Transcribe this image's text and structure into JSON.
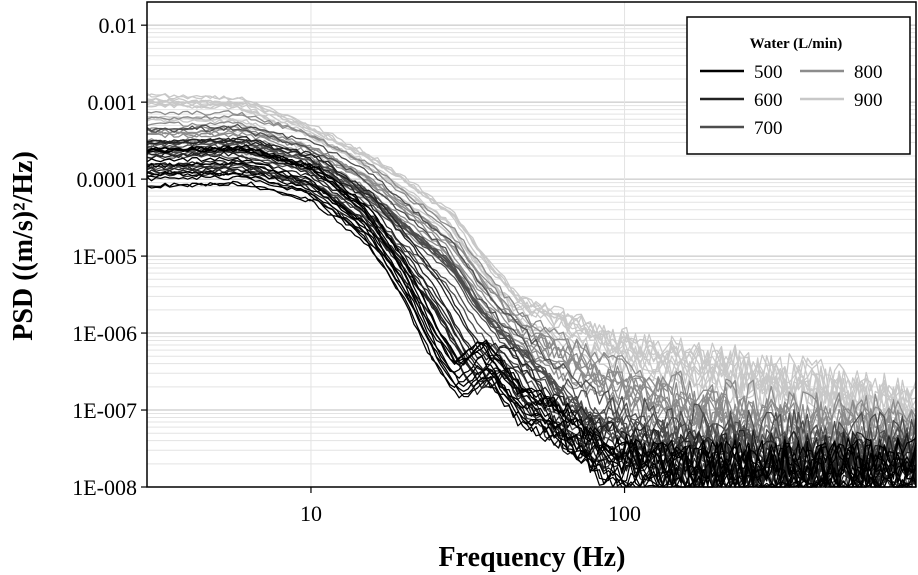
{
  "chart_data": {
    "type": "line",
    "xlabel": "Frequency (Hz)",
    "ylabel": "PSD ((m/s)²/Hz)",
    "x_scale": "log",
    "y_scale": "log",
    "xlim": [
      3,
      850
    ],
    "ylim": [
      1e-08,
      0.02
    ],
    "x_ticks": [
      {
        "value": 10,
        "label": "10"
      },
      {
        "value": 100,
        "label": "100"
      }
    ],
    "y_ticks": [
      {
        "value": 1e-08,
        "label": "1E-008"
      },
      {
        "value": 1e-07,
        "label": "1E-007"
      },
      {
        "value": 1e-06,
        "label": "1E-006"
      },
      {
        "value": 1e-05,
        "label": "1E-005"
      },
      {
        "value": 0.0001,
        "label": "0.0001"
      },
      {
        "value": 0.001,
        "label": "0.001"
      },
      {
        "value": 0.01,
        "label": "0.01"
      }
    ],
    "grid": true,
    "legend": {
      "title": "Water (L/min)",
      "placement": "top-right",
      "entries": [
        {
          "label": "500",
          "color": "#000000"
        },
        {
          "label": "600",
          "color": "#222222"
        },
        {
          "label": "700",
          "color": "#4d4d4d"
        },
        {
          "label": "800",
          "color": "#8c8c8c"
        },
        {
          "label": "900",
          "color": "#c8c8c8"
        }
      ]
    },
    "series": [
      {
        "name": "500",
        "color": "#000000",
        "x": [
          3,
          6,
          10,
          15,
          20,
          24,
          29,
          35,
          45,
          60,
          80,
          120,
          200,
          400,
          850
        ],
        "y": [
          0.00015,
          0.00016,
          9e-05,
          2.5e-05,
          4e-06,
          8e-07,
          2.5e-07,
          5e-07,
          1.2e-07,
          7e-08,
          2.5e-08,
          1.6e-08,
          1.4e-08,
          1.4e-08,
          1.5e-08
        ]
      },
      {
        "name": "600",
        "color": "#222222",
        "x": [
          3,
          6,
          10,
          15,
          20,
          25,
          30,
          35,
          40,
          50,
          60,
          80,
          120,
          200,
          400,
          850
        ],
        "y": [
          0.0002,
          0.00022,
          0.00013,
          4e-05,
          1e-05,
          3e-06,
          8e-07,
          3e-07,
          5e-07,
          1.5e-07,
          8e-08,
          4e-08,
          2.5e-08,
          2e-08,
          1.8e-08,
          2e-08
        ]
      },
      {
        "name": "700",
        "color": "#4d4d4d",
        "x": [
          3,
          6,
          10,
          15,
          20,
          28,
          35,
          45,
          55,
          65,
          80,
          120,
          200,
          400,
          850
        ],
        "y": [
          0.00026,
          0.00028,
          0.00017,
          7e-05,
          2.5e-05,
          8e-06,
          2e-06,
          7e-07,
          3e-07,
          1.5e-07,
          8e-08,
          5e-08,
          3.5e-08,
          3e-08,
          3e-08
        ]
      },
      {
        "name": "800",
        "color": "#8c8c8c",
        "x": [
          3,
          6,
          10,
          15,
          20,
          28,
          35,
          45,
          60,
          80,
          120,
          200,
          400,
          850
        ],
        "y": [
          0.00042,
          0.00043,
          0.00024,
          0.0001,
          4e-05,
          1.4e-05,
          4e-06,
          1.2e-06,
          6e-07,
          3e-07,
          1.6e-07,
          9e-08,
          6e-08,
          5e-08
        ]
      },
      {
        "name": "900",
        "color": "#c8c8c8",
        "x": [
          3,
          6,
          10,
          15,
          20,
          28,
          35,
          45,
          60,
          80,
          120,
          200,
          400,
          850
        ],
        "y": [
          0.00075,
          0.0007,
          0.0003,
          0.00013,
          6e-05,
          2.2e-05,
          6e-06,
          1.8e-06,
          1.2e-06,
          7e-07,
          4e-07,
          2.5e-07,
          1.6e-07,
          8e-08
        ]
      }
    ]
  }
}
